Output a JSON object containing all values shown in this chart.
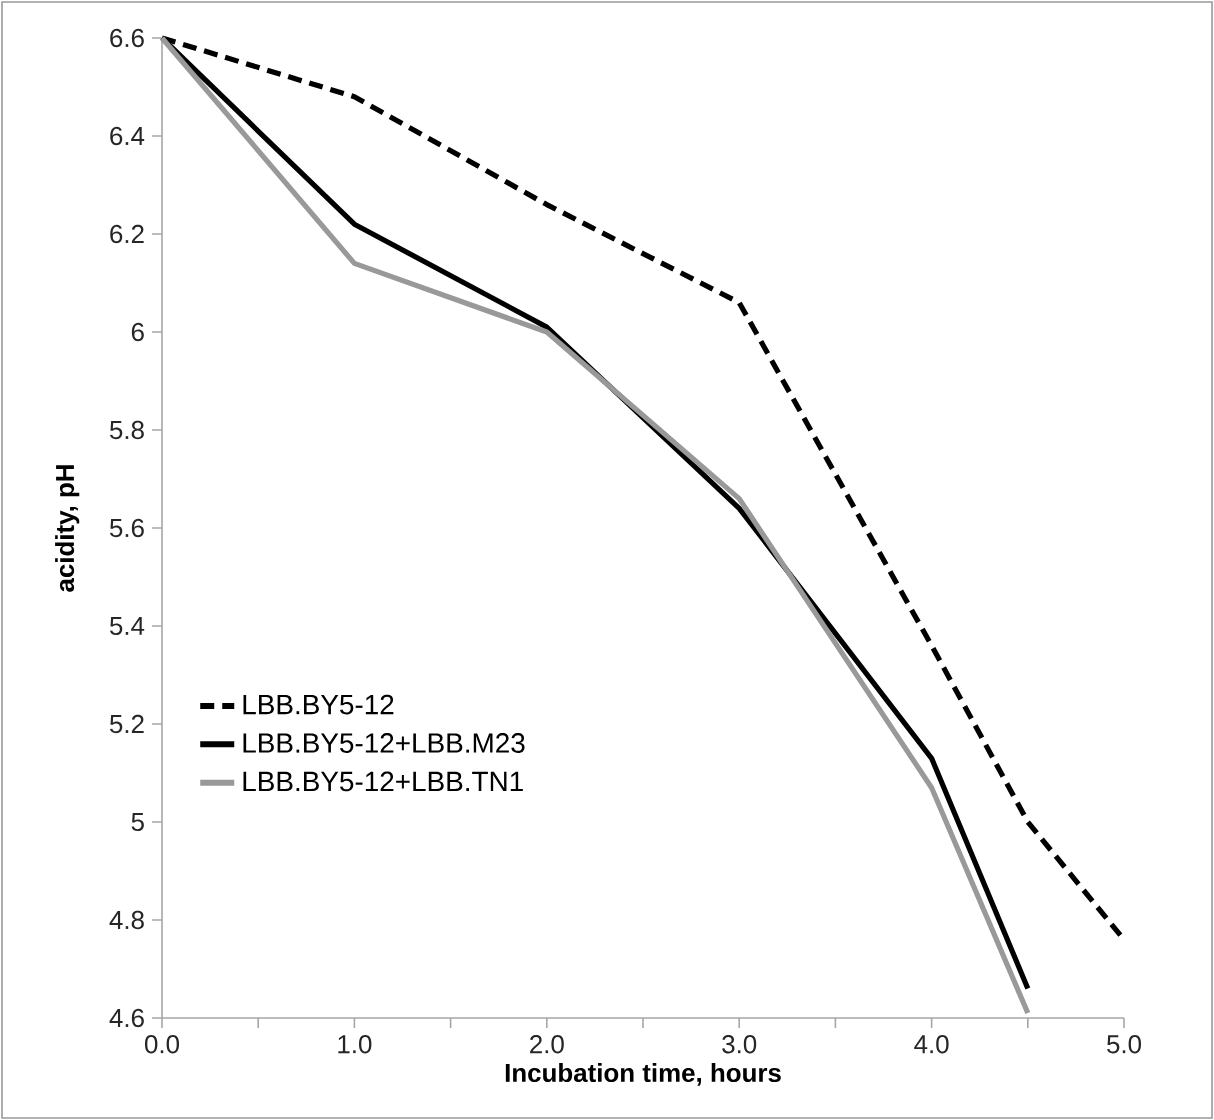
{
  "chart_data": {
    "type": "line",
    "xlabel": "Incubation time, hours",
    "ylabel": "acidity, pH",
    "xlim": [
      0,
      5
    ],
    "ylim": [
      4.6,
      6.6
    ],
    "xticks": [
      {
        "value": 0,
        "label": "0.0"
      },
      {
        "value": 0.5,
        "label": null
      },
      {
        "value": 1,
        "label": "1.0"
      },
      {
        "value": 1.5,
        "label": null
      },
      {
        "value": 2,
        "label": "2.0"
      },
      {
        "value": 2.5,
        "label": null
      },
      {
        "value": 3,
        "label": "3.0"
      },
      {
        "value": 3.5,
        "label": null
      },
      {
        "value": 4,
        "label": "4.0"
      },
      {
        "value": 4.5,
        "label": null
      },
      {
        "value": 5,
        "label": "5.0"
      }
    ],
    "yticks": [
      4.6,
      4.8,
      5,
      5.2,
      5.4,
      5.6,
      5.8,
      6,
      6.2,
      6.4,
      6.6
    ],
    "legend": "left",
    "grid": false,
    "marker": "none",
    "series": [
      {
        "name": "LBB.BY5-12",
        "color": "#000000",
        "line_style": "dashed",
        "x": [
          0,
          1,
          2,
          3,
          4,
          4.5,
          5
        ],
        "values": [
          6.6,
          6.48,
          6.26,
          6.06,
          5.36,
          5.0,
          4.76
        ]
      },
      {
        "name": "LBB.BY5-12+LBB.M23",
        "color": "#000000",
        "line_style": "solid",
        "x": [
          0,
          1,
          2,
          3,
          4,
          4.5
        ],
        "values": [
          6.6,
          6.22,
          6.01,
          5.64,
          5.13,
          4.66
        ]
      },
      {
        "name": "LBB.BY5-12+LBB.TN1",
        "color": "#999999",
        "line_style": "solid",
        "x": [
          0,
          1,
          2,
          3,
          4,
          4.5
        ],
        "values": [
          6.6,
          6.14,
          6.0,
          5.66,
          5.07,
          4.61
        ]
      }
    ]
  }
}
